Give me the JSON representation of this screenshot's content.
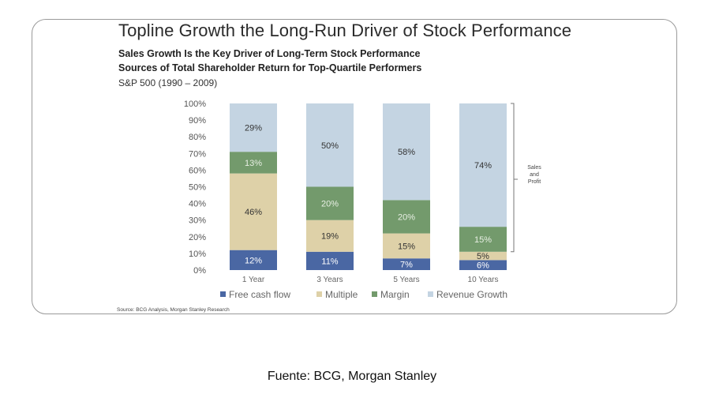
{
  "header": {
    "title": "Topline Growth the Long-Run Driver of Stock Performance",
    "subtitle1": "Sales Growth Is the Key Driver of Long-Term Stock Performance",
    "subtitle2": "Sources of Total Shareholder Return for Top-Quartile Performers",
    "subtitle3": "S&P 500 (1990 – 2009)"
  },
  "source_note": "Source: BCG Analysis, Morgan Stanley Research",
  "caption": "Fuente: BCG, Morgan Stanley",
  "bracket_label": [
    "Sales",
    "and",
    "Profit"
  ],
  "chart_data": {
    "type": "bar",
    "stacked": true,
    "categories": [
      "1 Year",
      "3 Years",
      "5 Years",
      "10 Years"
    ],
    "ylim": [
      0,
      100
    ],
    "yticks": [
      "0%",
      "10%",
      "20%",
      "30%",
      "40%",
      "50%",
      "60%",
      "70%",
      "80%",
      "90%",
      "100%"
    ],
    "grid": false,
    "legend_position": "bottom",
    "series": [
      {
        "name": "Free cash flow",
        "color": "#4a67a3",
        "label_color": "#ffffff",
        "values": [
          12,
          11,
          7,
          6
        ]
      },
      {
        "name": "Multiple",
        "color": "#ded1a8",
        "label_color": "#333333",
        "values": [
          46,
          19,
          15,
          5
        ]
      },
      {
        "name": "Margin",
        "color": "#739a6c",
        "label_color": "#e8efe4",
        "values": [
          13,
          20,
          20,
          15
        ]
      },
      {
        "name": "Revenue Growth",
        "color": "#c4d4e2",
        "label_color": "#333333",
        "values": [
          29,
          50,
          58,
          74
        ]
      }
    ]
  }
}
